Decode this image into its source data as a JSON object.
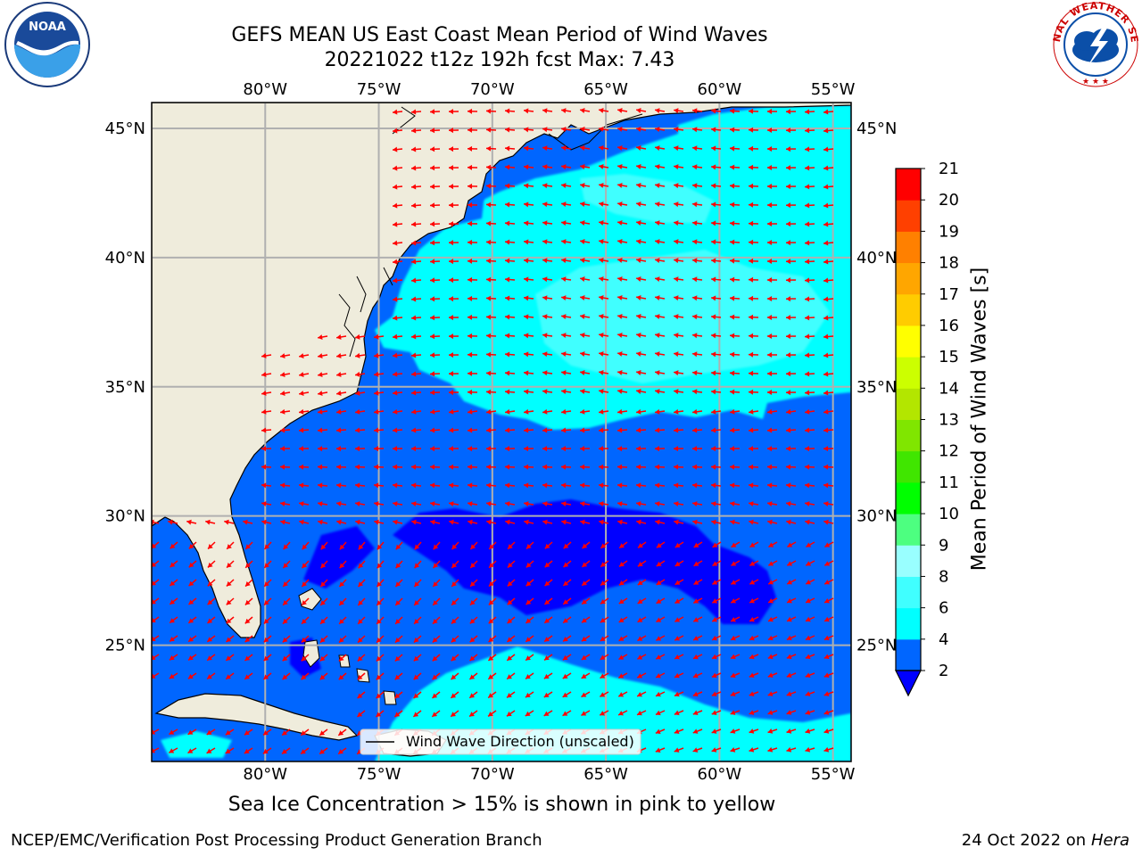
{
  "header": {
    "title_line1": "GEFS MEAN US East Coast Mean Period of Wind Waves",
    "title_line2": "20221022 t12z 192h fcst   Max: 7.43"
  },
  "logos": {
    "left": "NOAA",
    "right_ring_text": "NATIONAL WEATHER SERVICE"
  },
  "map": {
    "lon_labels": [
      "80°W",
      "75°W",
      "70°W",
      "65°W",
      "60°W",
      "55°W"
    ],
    "lon_values": [
      -80,
      -75,
      -70,
      -65,
      -60,
      -55
    ],
    "lat_labels": [
      "25°N",
      "30°N",
      "35°N",
      "40°N",
      "45°N"
    ],
    "lat_values": [
      25,
      30,
      35,
      40,
      45
    ],
    "extent": {
      "lon_min": -85,
      "lon_max": -54.2,
      "lat_min": 20.5,
      "lat_max": 46
    },
    "legend_text": "Wind Wave Direction (unscaled)",
    "arrow_color": "#ff0000",
    "land_color": "#efecdc"
  },
  "colorbar": {
    "title": "Mean Period of Wind Waves [s]",
    "tick_labels": [
      "2",
      "4",
      "6",
      "8",
      "9",
      "10",
      "11",
      "12",
      "13",
      "14",
      "15",
      "16",
      "17",
      "18",
      "19",
      "20",
      "21"
    ],
    "colors": [
      "#0066ff",
      "#00ffff",
      "#40ffff",
      "#99ffff",
      "#4dff80",
      "#00ff00",
      "#40e600",
      "#80e600",
      "#b3e600",
      "#ccff00",
      "#ffff00",
      "#ffcc00",
      "#ffa600",
      "#ff8000",
      "#ff4000",
      "#ff0000"
    ],
    "under_color": "#0000ff"
  },
  "note": "Sea Ice Concentration > 15% is shown in pink to yellow",
  "footer": {
    "left": "NCEP/EMC/Verification Post Processing Product Generation Branch",
    "right_prefix": "24 Oct 2022 on ",
    "right_host": "Hera"
  }
}
